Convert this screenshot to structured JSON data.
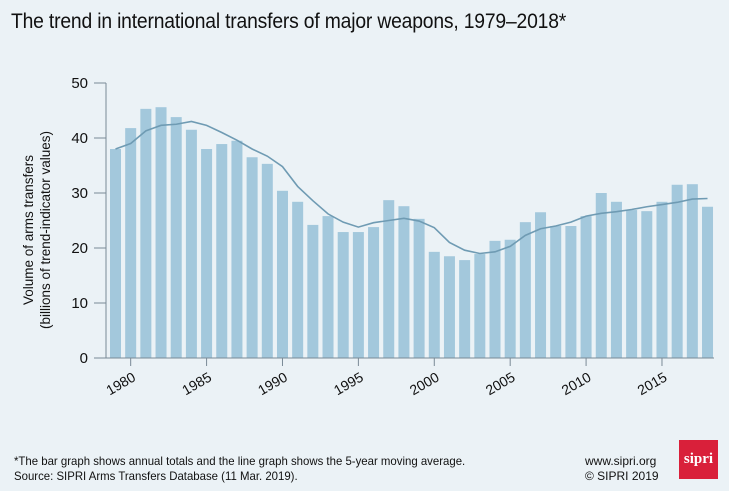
{
  "title": "The trend in international transfers of major weapons, 1979–2018*",
  "footer": {
    "note": "*The bar graph shows annual totals and the line graph shows the 5-year moving average.",
    "source": "Source: SIPRI Arms Transfers Database (11 Mar. 2019).",
    "website": "www.sipri.org",
    "copyright": "© SIPRI 2019",
    "logo_text": "sipri"
  },
  "colors": {
    "bar": "#a3c8dc",
    "line": "#6f9bb3",
    "axis": "#7a8a96",
    "logo": "#d9203a"
  },
  "chart_data": {
    "type": "bar",
    "title": "The trend in international transfers of major weapons, 1979–2018*",
    "xlabel": "",
    "ylabel": "Volume of arms transfers",
    "ylabel2": "(billions of trend-indicator values)",
    "ylim": [
      0,
      50
    ],
    "yticks": [
      0,
      10,
      20,
      30,
      40,
      50
    ],
    "xticks": [
      1980,
      1985,
      1990,
      1995,
      2000,
      2005,
      2010,
      2015
    ],
    "grid": false,
    "x": [
      1979,
      1980,
      1981,
      1982,
      1983,
      1984,
      1985,
      1986,
      1987,
      1988,
      1989,
      1990,
      1991,
      1992,
      1993,
      1994,
      1995,
      1996,
      1997,
      1998,
      1999,
      2000,
      2001,
      2002,
      2003,
      2004,
      2005,
      2006,
      2007,
      2008,
      2009,
      2010,
      2011,
      2012,
      2013,
      2014,
      2015,
      2016,
      2017,
      2018
    ],
    "series": [
      {
        "name": "Annual totals",
        "type": "bar",
        "values": [
          38.0,
          41.8,
          45.3,
          45.6,
          43.8,
          41.5,
          38.0,
          38.9,
          39.5,
          36.5,
          35.3,
          30.4,
          28.4,
          24.2,
          25.8,
          22.9,
          22.9,
          23.8,
          28.7,
          27.6,
          25.3,
          19.3,
          18.5,
          17.8,
          18.9,
          21.3,
          21.5,
          24.7,
          26.5,
          24.0,
          24.0,
          25.8,
          30.0,
          28.4,
          26.9,
          26.7,
          28.4,
          31.5,
          31.6,
          27.5
        ]
      },
      {
        "name": "5-year moving average",
        "type": "line",
        "values": [
          38.0,
          39.0,
          41.3,
          42.3,
          42.5,
          43.0,
          42.3,
          41.0,
          39.6,
          38.0,
          36.7,
          34.8,
          31.2,
          28.6,
          26.2,
          24.7,
          23.8,
          24.6,
          25.0,
          25.4,
          24.9,
          23.7,
          21.0,
          19.6,
          19.0,
          19.3,
          20.3,
          22.3,
          23.5,
          24.0,
          24.7,
          25.8,
          26.3,
          26.6,
          27.0,
          27.5,
          27.9,
          28.3,
          28.9,
          29.0
        ]
      }
    ]
  }
}
